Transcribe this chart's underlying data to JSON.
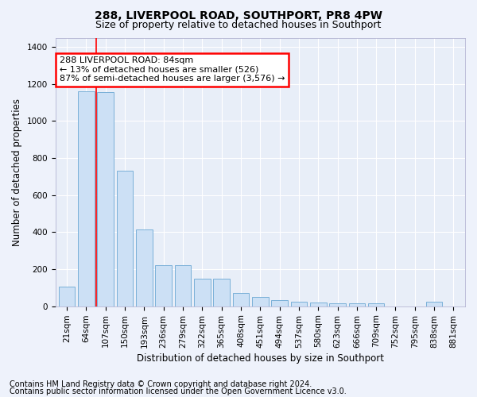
{
  "title": "288, LIVERPOOL ROAD, SOUTHPORT, PR8 4PW",
  "subtitle": "Size of property relative to detached houses in Southport",
  "xlabel": "Distribution of detached houses by size in Southport",
  "ylabel": "Number of detached properties",
  "footnote1": "Contains HM Land Registry data © Crown copyright and database right 2024.",
  "footnote2": "Contains public sector information licensed under the Open Government Licence v3.0.",
  "categories": [
    "21sqm",
    "64sqm",
    "107sqm",
    "150sqm",
    "193sqm",
    "236sqm",
    "279sqm",
    "322sqm",
    "365sqm",
    "408sqm",
    "451sqm",
    "494sqm",
    "537sqm",
    "580sqm",
    "623sqm",
    "666sqm",
    "709sqm",
    "752sqm",
    "795sqm",
    "838sqm",
    "881sqm"
  ],
  "values": [
    105,
    1160,
    1155,
    730,
    415,
    220,
    220,
    150,
    150,
    70,
    52,
    35,
    25,
    20,
    15,
    15,
    14,
    0,
    0,
    25,
    0
  ],
  "bar_color": "#cce0f5",
  "bar_edge_color": "#7ab0d8",
  "redline_index": 1.5,
  "annotation_text": "288 LIVERPOOL ROAD: 84sqm\n← 13% of detached houses are smaller (526)\n87% of semi-detached houses are larger (3,576) →",
  "annotation_box_facecolor": "white",
  "annotation_box_edgecolor": "red",
  "ylim": [
    0,
    1450
  ],
  "yticks": [
    0,
    200,
    400,
    600,
    800,
    1000,
    1200,
    1400
  ],
  "bg_color": "#eef2fb",
  "plot_bg_color": "#e8eef8",
  "grid_color": "white",
  "title_fontsize": 10,
  "subtitle_fontsize": 9,
  "axis_label_fontsize": 8.5,
  "tick_fontsize": 7.5,
  "footnote_fontsize": 7,
  "annotation_fontsize": 8
}
